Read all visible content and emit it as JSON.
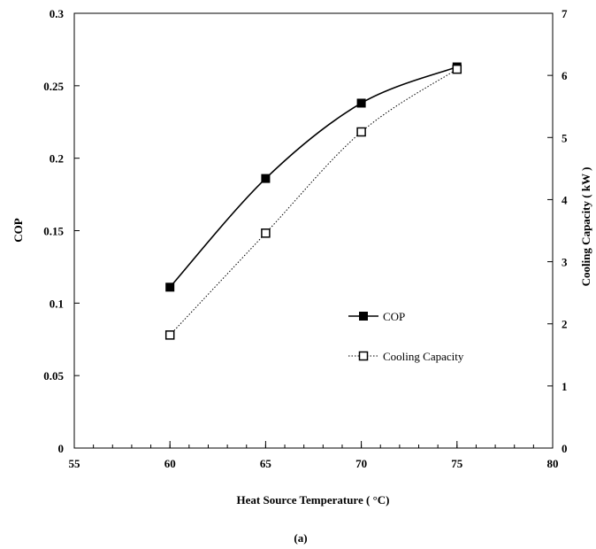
{
  "chart_data": {
    "type": "line",
    "x": [
      60,
      65,
      70,
      75
    ],
    "series": [
      {
        "name": "COP",
        "axis": "left",
        "values": [
          0.111,
          0.186,
          0.238,
          0.263
        ],
        "marker": "filled-square",
        "line": "solid",
        "color": "#000000"
      },
      {
        "name": "Cooling Capacity",
        "axis": "right",
        "values": [
          1.82,
          3.46,
          5.09,
          6.1
        ],
        "marker": "open-square",
        "line": "dotted",
        "color": "#000000"
      }
    ],
    "xlabel": "Heat Source Temperature ( °C)",
    "ylabel": "COP",
    "ylabel_right": "Cooling Capacity ( kW )",
    "xlim": [
      55,
      80
    ],
    "ylim": [
      0,
      0.3
    ],
    "ylim_right": [
      0,
      7
    ],
    "x_ticks": [
      "55",
      "60",
      "65",
      "70",
      "75",
      "80"
    ],
    "y_ticks": [
      "0",
      "0.05",
      "0.1",
      "0.15",
      "0.2",
      "0.25",
      "0.3"
    ],
    "y_ticks_right": [
      "0",
      "1",
      "2",
      "3",
      "4",
      "5",
      "6",
      "7"
    ],
    "grid": false,
    "legend_position": "center-right",
    "caption": "(a)"
  }
}
